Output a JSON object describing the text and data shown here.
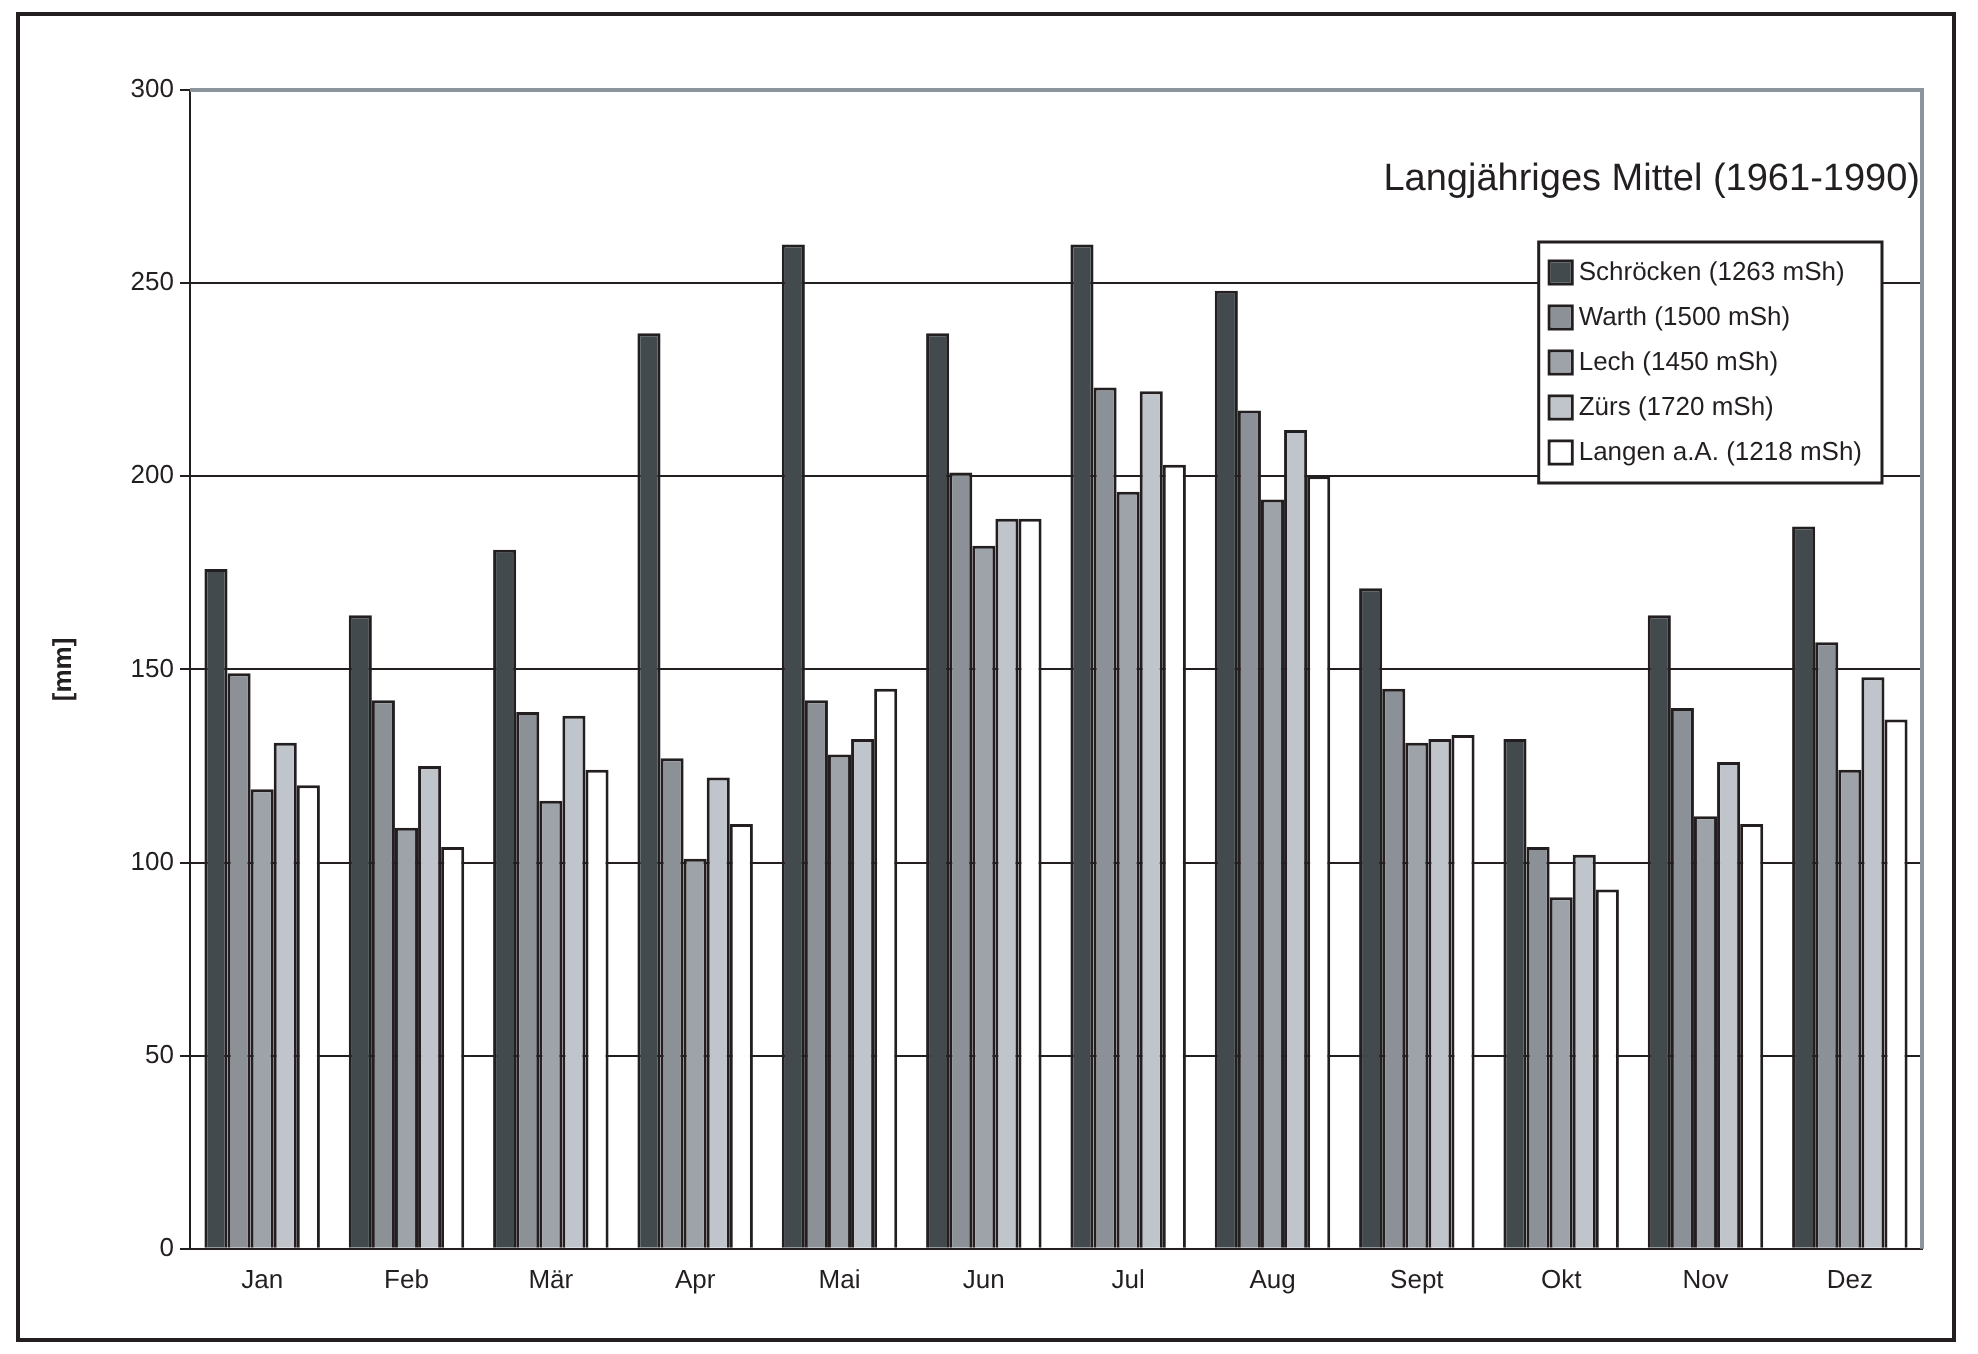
{
  "chart_data": {
    "type": "bar",
    "title": "Langjähriges Mittel (1961-1990)",
    "ylabel": "[mm]",
    "categories": [
      "Jan",
      "Feb",
      "Mär",
      "Apr",
      "Mai",
      "Jun",
      "Jul",
      "Aug",
      "Sept",
      "Okt",
      "Nov",
      "Dez"
    ],
    "series": [
      {
        "name": "Schröcken (1263 mSh)",
        "color": "#424a4d",
        "values": [
          176,
          164,
          181,
          237,
          260,
          237,
          260,
          248,
          171,
          132,
          164,
          187
        ]
      },
      {
        "name": "Warth (1500 mSh)",
        "color": "#8c9197",
        "values": [
          149,
          142,
          139,
          127,
          142,
          201,
          223,
          217,
          145,
          104,
          140,
          157
        ]
      },
      {
        "name": "Lech (1450 mSh)",
        "color": "#9ea3aa",
        "values": [
          119,
          109,
          116,
          101,
          128,
          182,
          196,
          194,
          131,
          91,
          112,
          124
        ]
      },
      {
        "name": "Zürs (1720 mSh)",
        "color": "#c0c4cb",
        "values": [
          131,
          125,
          138,
          122,
          132,
          189,
          222,
          212,
          132,
          102,
          126,
          148
        ]
      },
      {
        "name": "Langen a.A. (1218 mSh)",
        "color": "#ffffff",
        "values": [
          120,
          104,
          124,
          110,
          145,
          189,
          203,
          200,
          133,
          93,
          110,
          137
        ]
      }
    ],
    "ylim": [
      0,
      300
    ],
    "yticks": [
      0,
      50,
      100,
      150,
      200,
      250,
      300
    ],
    "grid": "y",
    "legend": "top right"
  }
}
